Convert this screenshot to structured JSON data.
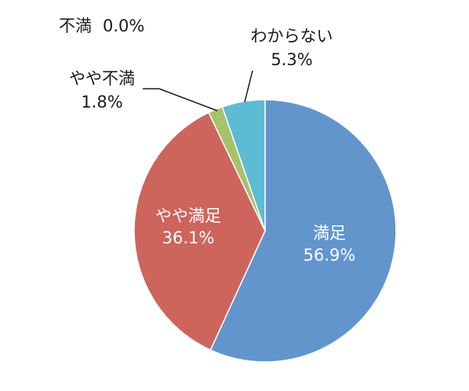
{
  "chart_data": {
    "type": "pie",
    "start_angle_deg": 0,
    "direction": "clockwise",
    "slices": [
      {
        "label": "満足",
        "value": 56.9,
        "value_text": "56.9%",
        "color": "#6295CB",
        "label_color": "#ffffff"
      },
      {
        "label": "やや満足",
        "value": 36.1,
        "value_text": "36.1%",
        "color": "#CD655D",
        "label_color": "#ffffff"
      },
      {
        "label": "やや不満",
        "value": 1.8,
        "value_text": "1.8%",
        "color": "#A6C26A",
        "label_color": "#1a1a1a"
      },
      {
        "label": "不満",
        "value": 0.0,
        "value_text": "0.0%",
        "color": "#7F65A6",
        "label_color": "#1a1a1a"
      },
      {
        "label": "わからない",
        "value": 5.3,
        "value_text": "5.3%",
        "color": "#5DBBD3",
        "label_color": "#1a1a1a"
      }
    ]
  }
}
